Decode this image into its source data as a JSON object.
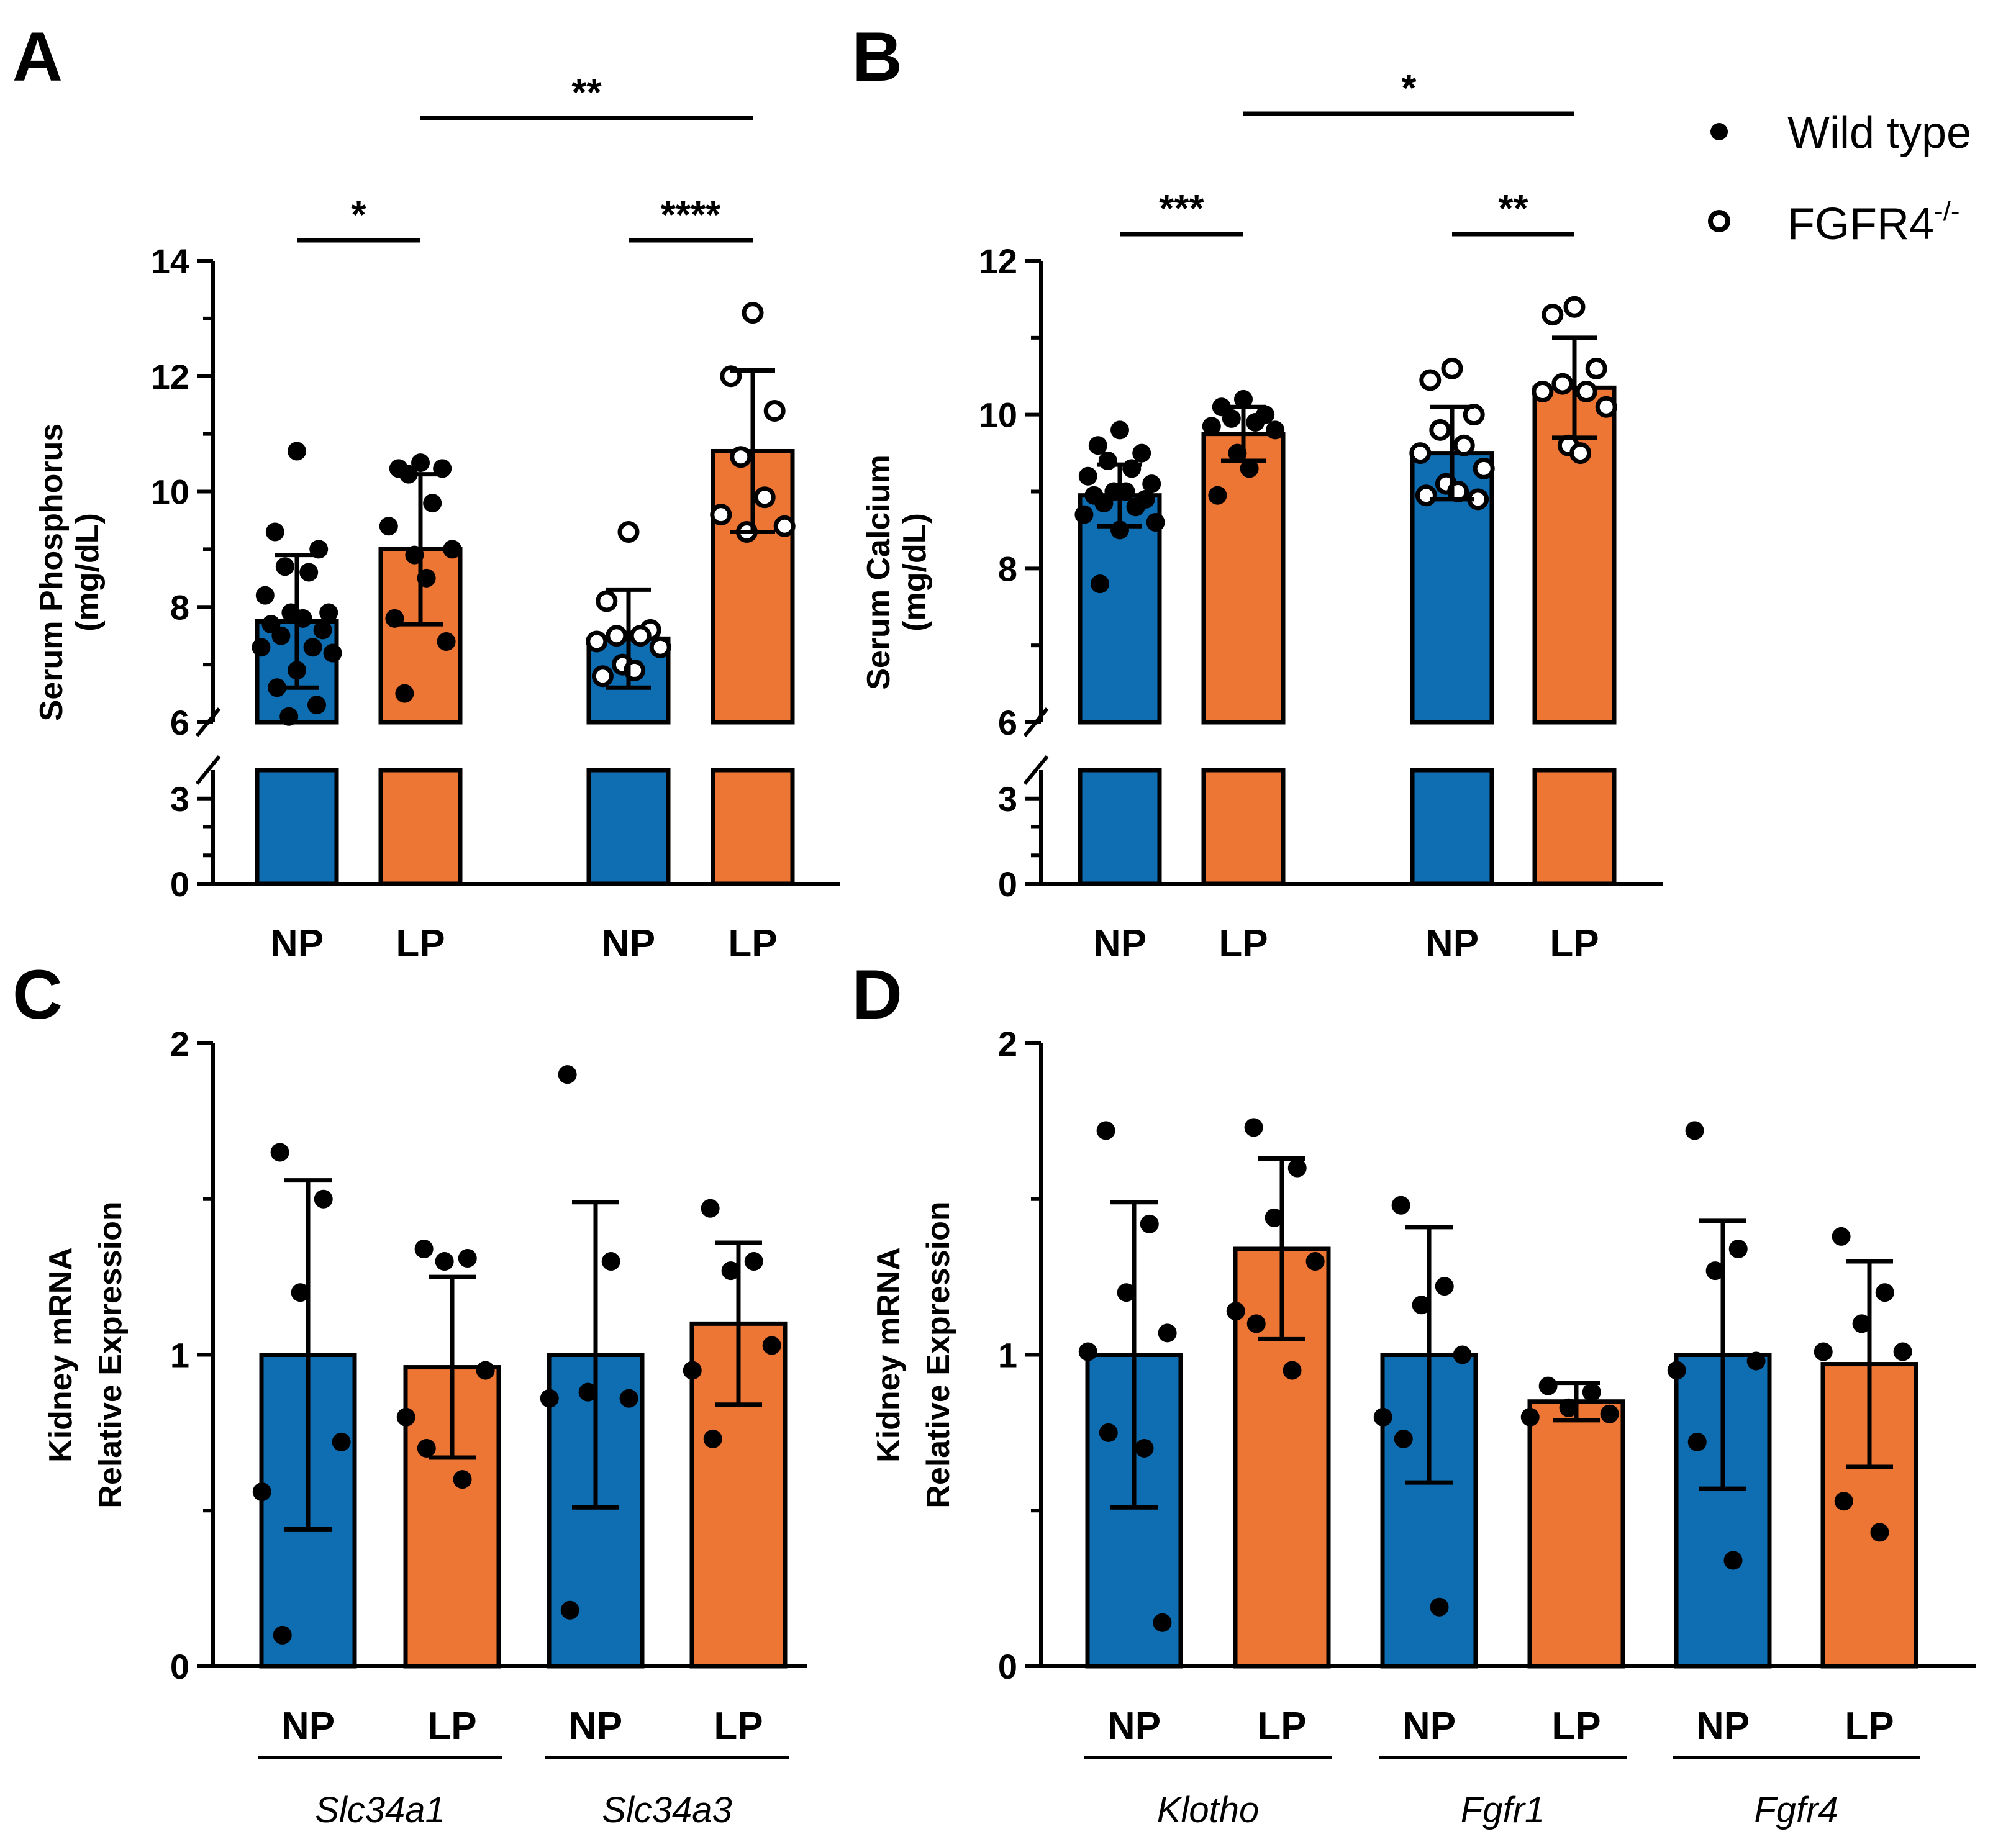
{
  "colors": {
    "wild_type_bar": "#0F6DB1",
    "knockout_bar": "#EE7634",
    "ink": "#000000"
  },
  "legend": {
    "items": [
      {
        "label": "Wild type",
        "marker": "filled-circle"
      },
      {
        "label": "FGFR4",
        "superscript": "-/-",
        "marker": "open-circle"
      }
    ]
  },
  "chart_data": [
    {
      "panel": "A",
      "type": "bar",
      "title": "",
      "ylabel": "Serum Phosphorus",
      "ylabel_unit": "(mg/dL)",
      "y_axis_break": {
        "lower_range": [
          0,
          4
        ],
        "upper_range": [
          6,
          14
        ]
      },
      "lower_ticks": [
        "0",
        "3"
      ],
      "upper_ticks": [
        "6",
        "8",
        "10",
        "12",
        "14"
      ],
      "categories": [
        "NP",
        "LP",
        "NP",
        "LP"
      ],
      "groups": [
        "Wild type",
        "Wild type",
        "FGFR4-/-",
        "FGFR4-/-"
      ],
      "series": [
        {
          "name": "Wild type NP",
          "mean": 7.75,
          "sd": 1.15,
          "fill": "blue",
          "marker": "filled",
          "points": [
            10.7,
            9.3,
            9.0,
            8.7,
            8.6,
            8.2,
            7.9,
            7.9,
            7.8,
            7.7,
            7.6,
            7.5,
            7.3,
            7.3,
            7.2,
            6.9,
            6.6,
            6.3,
            6.1
          ]
        },
        {
          "name": "Wild type LP",
          "mean": 9.0,
          "sd": 1.3,
          "fill": "orange",
          "marker": "filled",
          "points": [
            10.5,
            10.4,
            10.4,
            10.3,
            9.8,
            9.4,
            9.0,
            8.9,
            8.5,
            7.8,
            7.4,
            6.5
          ]
        },
        {
          "name": "FGFR4-/- NP",
          "mean": 7.45,
          "sd": 0.85,
          "fill": "blue",
          "marker": "open",
          "points": [
            9.3,
            8.1,
            7.6,
            7.5,
            7.5,
            7.4,
            7.3,
            7.0,
            6.9,
            6.8
          ]
        },
        {
          "name": "FGFR4-/- LP",
          "mean": 10.7,
          "sd": 1.4,
          "fill": "orange",
          "marker": "open",
          "points": [
            13.1,
            12.0,
            11.4,
            10.6,
            9.9,
            9.6,
            9.4,
            9.3
          ]
        }
      ],
      "comparisons": [
        {
          "label": "*",
          "from": 0,
          "to": 1,
          "level": 1
        },
        {
          "label": "****",
          "from": 2,
          "to": 3,
          "level": 1
        },
        {
          "label": "**",
          "from": 1,
          "to": 3,
          "level": 2
        }
      ]
    },
    {
      "panel": "B",
      "type": "bar",
      "title": "",
      "ylabel": "Serum Calcium",
      "ylabel_unit": "(mg/dL)",
      "y_axis_break": {
        "lower_range": [
          0,
          4
        ],
        "upper_range": [
          6,
          12
        ]
      },
      "lower_ticks": [
        "0",
        "3"
      ],
      "upper_ticks": [
        "6",
        "8",
        "10",
        "12"
      ],
      "categories": [
        "NP",
        "LP",
        "NP",
        "LP"
      ],
      "groups": [
        "Wild type",
        "Wild type",
        "FGFR4-/-",
        "FGFR4-/-"
      ],
      "series": [
        {
          "name": "Wild type NP",
          "mean": 8.95,
          "sd": 0.4,
          "fill": "blue",
          "marker": "filled",
          "points": [
            9.8,
            9.6,
            9.5,
            9.4,
            9.3,
            9.2,
            9.1,
            9.0,
            9.0,
            8.95,
            8.9,
            8.85,
            8.8,
            8.7,
            8.6,
            8.5,
            7.8
          ]
        },
        {
          "name": "Wild type LP",
          "mean": 9.75,
          "sd": 0.35,
          "fill": "orange",
          "marker": "filled",
          "points": [
            10.2,
            10.1,
            10.0,
            9.95,
            9.9,
            9.85,
            9.8,
            9.5,
            9.3,
            8.95
          ]
        },
        {
          "name": "FGFR4-/- NP",
          "mean": 9.5,
          "sd": 0.6,
          "fill": "blue",
          "marker": "open",
          "points": [
            10.6,
            10.45,
            10.0,
            9.8,
            9.6,
            9.5,
            9.3,
            9.1,
            9.0,
            8.95,
            8.9
          ]
        },
        {
          "name": "FGFR4-/- LP",
          "mean": 10.35,
          "sd": 0.65,
          "fill": "orange",
          "marker": "open",
          "points": [
            11.4,
            11.3,
            10.6,
            10.4,
            10.3,
            10.3,
            10.1,
            9.6,
            9.5
          ]
        }
      ],
      "comparisons": [
        {
          "label": "***",
          "from": 0,
          "to": 1,
          "level": 1
        },
        {
          "label": "**",
          "from": 2,
          "to": 3,
          "level": 1
        },
        {
          "label": "*",
          "from": 1,
          "to": 3,
          "level": 2
        }
      ]
    },
    {
      "panel": "C",
      "type": "bar",
      "title": "",
      "ylabel": "Kidney mRNA",
      "ylabel_unit": "Relative Expression",
      "ylim": [
        0,
        2
      ],
      "ticks": [
        "0",
        "1",
        "2"
      ],
      "categories": [
        "NP",
        "LP",
        "NP",
        "LP"
      ],
      "genes": [
        "Slc34a1",
        "Slc34a3"
      ],
      "series": [
        {
          "name": "Slc34a1 NP",
          "mean": 1.0,
          "sd": 0.56,
          "fill": "blue",
          "points": [
            1.65,
            1.5,
            1.2,
            0.72,
            0.56,
            0.1
          ]
        },
        {
          "name": "Slc34a1 LP",
          "mean": 0.96,
          "sd": 0.29,
          "fill": "orange",
          "points": [
            1.34,
            1.31,
            1.3,
            0.95,
            0.8,
            0.7,
            0.6
          ]
        },
        {
          "name": "Slc34a3 NP",
          "mean": 1.0,
          "sd": 0.49,
          "fill": "blue",
          "points": [
            1.9,
            1.3,
            0.88,
            0.86,
            0.86,
            0.18
          ]
        },
        {
          "name": "Slc34a3 LP",
          "mean": 1.1,
          "sd": 0.26,
          "fill": "orange",
          "points": [
            1.47,
            1.3,
            1.27,
            1.03,
            0.95,
            0.73
          ]
        }
      ]
    },
    {
      "panel": "D",
      "type": "bar",
      "title": "",
      "ylabel": "Kidney mRNA",
      "ylabel_unit": "Relative Expression",
      "ylim": [
        0,
        2
      ],
      "ticks": [
        "0",
        "1",
        "2"
      ],
      "categories": [
        "NP",
        "LP",
        "NP",
        "LP",
        "NP",
        "LP"
      ],
      "genes": [
        "Klotho",
        "Fgfr1",
        "Fgfr4"
      ],
      "series": [
        {
          "name": "Klotho NP",
          "mean": 1.0,
          "sd": 0.49,
          "fill": "blue",
          "points": [
            1.72,
            1.42,
            1.2,
            1.07,
            1.01,
            0.75,
            0.7,
            0.14
          ]
        },
        {
          "name": "Klotho LP",
          "mean": 1.34,
          "sd": 0.29,
          "fill": "orange",
          "points": [
            1.73,
            1.6,
            1.44,
            1.3,
            1.14,
            1.1,
            0.95
          ]
        },
        {
          "name": "Fgfr1 NP",
          "mean": 1.0,
          "sd": 0.41,
          "fill": "blue",
          "points": [
            1.48,
            1.22,
            1.16,
            1.0,
            0.8,
            0.73,
            0.19
          ]
        },
        {
          "name": "Fgfr1 LP",
          "mean": 0.85,
          "sd": 0.06,
          "fill": "orange",
          "points": [
            0.9,
            0.88,
            0.83,
            0.81,
            0.8
          ]
        },
        {
          "name": "Fgfr4 NP",
          "mean": 1.0,
          "sd": 0.43,
          "fill": "blue",
          "points": [
            1.72,
            1.34,
            1.27,
            0.98,
            0.95,
            0.72,
            0.34
          ]
        },
        {
          "name": "Fgfr4 LP",
          "mean": 0.97,
          "sd": 0.33,
          "fill": "orange",
          "points": [
            1.38,
            1.2,
            1.1,
            1.01,
            1.01,
            0.53,
            0.43
          ]
        }
      ]
    }
  ]
}
